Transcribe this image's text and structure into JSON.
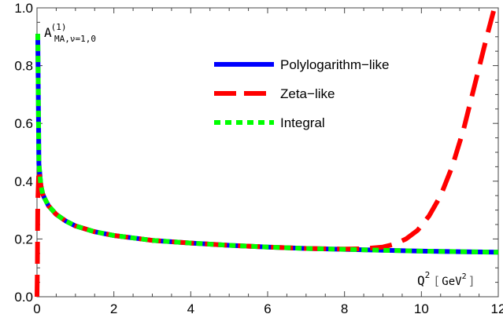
{
  "chart_data": {
    "type": "line",
    "title": "",
    "xlabel": {
      "base": "Q",
      "exp": "2",
      "unit_open": "[",
      "unit": "GeV",
      "unit_exp": "2",
      "unit_close": "]"
    },
    "ylabel": {
      "base": "A",
      "superscript": "(1)",
      "subscript": "MA,ν=1,0"
    },
    "xlim": [
      0,
      12
    ],
    "ylim": [
      0,
      1.0
    ],
    "xticks": [
      0,
      2,
      4,
      6,
      8,
      10,
      12
    ],
    "xtick_labels": [
      "0",
      "2",
      "4",
      "6",
      "8",
      "10",
      "12"
    ],
    "yticks": [
      0.0,
      0.2,
      0.4,
      0.6,
      0.8,
      1.0
    ],
    "ytick_labels": [
      "0.0",
      "0.2",
      "0.4",
      "0.6",
      "0.8",
      "1.0"
    ],
    "grid": false,
    "legend_position": "top-right",
    "series": [
      {
        "name": "Polylogarithm−like",
        "color": "#0000ff",
        "style": "solid",
        "x": [
          0.02,
          0.05,
          0.1,
          0.15,
          0.2,
          0.3,
          0.5,
          0.75,
          1,
          1.5,
          2,
          3,
          4,
          5,
          6,
          7,
          8,
          9,
          10,
          11,
          12
        ],
        "y": [
          0.91,
          0.46,
          0.385,
          0.355,
          0.34,
          0.315,
          0.285,
          0.262,
          0.245,
          0.225,
          0.212,
          0.195,
          0.186,
          0.178,
          0.172,
          0.167,
          0.164,
          0.161,
          0.158,
          0.156,
          0.154
        ]
      },
      {
        "name": "Zeta−like",
        "color": "#ff0000",
        "style": "dashed",
        "x": [
          0.0,
          0.01,
          0.02,
          0.05,
          0.1,
          0.15,
          0.2,
          0.3,
          0.5,
          0.75,
          1,
          1.5,
          2,
          3,
          4,
          5,
          6,
          7,
          8,
          8.5,
          9,
          9.3,
          9.6,
          9.9,
          10.2,
          10.5,
          10.8,
          11.1,
          11.4,
          11.7,
          11.9
        ],
        "y": [
          0.0,
          0.1,
          0.33,
          0.44,
          0.385,
          0.355,
          0.34,
          0.315,
          0.285,
          0.262,
          0.245,
          0.225,
          0.212,
          0.195,
          0.186,
          0.178,
          0.172,
          0.167,
          0.165,
          0.166,
          0.172,
          0.182,
          0.2,
          0.23,
          0.28,
          0.35,
          0.45,
          0.58,
          0.74,
          0.9,
          1.0
        ]
      },
      {
        "name": "Integral",
        "color": "#00ff00",
        "style": "dotted",
        "x": [
          0.02,
          0.05,
          0.1,
          0.15,
          0.2,
          0.3,
          0.5,
          0.75,
          1,
          1.5,
          2,
          3,
          4,
          5,
          6,
          7,
          8,
          9,
          10,
          11,
          12
        ],
        "y": [
          0.91,
          0.46,
          0.385,
          0.355,
          0.34,
          0.315,
          0.285,
          0.262,
          0.245,
          0.225,
          0.212,
          0.195,
          0.186,
          0.178,
          0.172,
          0.167,
          0.164,
          0.161,
          0.158,
          0.156,
          0.154
        ]
      }
    ]
  }
}
